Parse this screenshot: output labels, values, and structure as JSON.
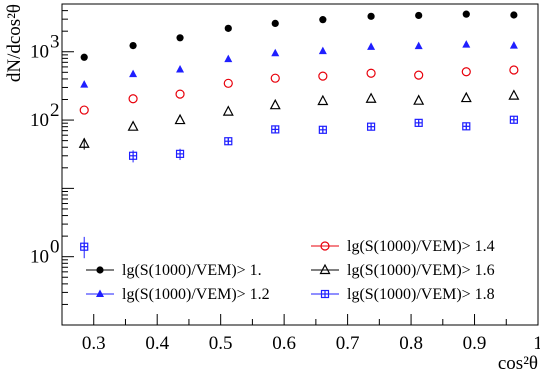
{
  "chart_data": {
    "type": "scatter",
    "xlabel": "cos²θ",
    "ylabel": "dN/dcos²θ",
    "xlim": [
      0.25,
      1.0
    ],
    "ylim": [
      0.1,
      5000
    ],
    "yscale": "log",
    "x_ticks": [
      "0.3",
      "0.4",
      "0.5",
      "0.6",
      "0.7",
      "0.8",
      "0.9",
      "1"
    ],
    "y_ticks": [
      {
        "value": 1,
        "label": "10",
        "exp": "0"
      },
      {
        "value": 100,
        "label": "10",
        "exp": "2"
      },
      {
        "value": 1000,
        "label": "10",
        "exp": "3"
      }
    ],
    "grid": false,
    "legend_placement": "bottom-right",
    "x": [
      0.285,
      0.362,
      0.436,
      0.512,
      0.586,
      0.661,
      0.737,
      0.812,
      0.887,
      0.962
    ],
    "series": [
      {
        "name": "lg(S(1000)/VEM)> 1.",
        "marker": "filled-circle",
        "color": "#000000",
        "values": [
          830,
          1230,
          1600,
          2200,
          2600,
          2950,
          3300,
          3400,
          3550,
          3450
        ]
      },
      {
        "name": "lg(S(1000)/VEM)> 1.2",
        "marker": "filled-triangle",
        "color": "#1f1fff",
        "values": [
          330,
          470,
          550,
          780,
          950,
          1020,
          1180,
          1210,
          1270,
          1230
        ]
      },
      {
        "name": "lg(S(1000)/VEM)> 1.4",
        "marker": "open-circle",
        "color": "#e8000b",
        "values": [
          140,
          205,
          240,
          345,
          410,
          440,
          485,
          455,
          510,
          540
        ]
      },
      {
        "name": "lg(S(1000)/VEM)> 1.6",
        "marker": "open-triangle",
        "color": "#000000",
        "values": [
          45,
          80,
          100,
          133,
          165,
          190,
          205,
          192,
          210,
          228
        ]
      },
      {
        "name": "lg(S(1000)/VEM)> 1.8",
        "marker": "open-cross-square",
        "color": "#1f1fff",
        "values": [
          1.4,
          30,
          32,
          49,
          73,
          72,
          80,
          91,
          81,
          101
        ],
        "errors_low": [
          0.45,
          6,
          6,
          6,
          6,
          6,
          6,
          6,
          6,
          6
        ],
        "errors_high": [
          0.55,
          6,
          6,
          6,
          6,
          6,
          6,
          6,
          6,
          6
        ]
      }
    ]
  }
}
